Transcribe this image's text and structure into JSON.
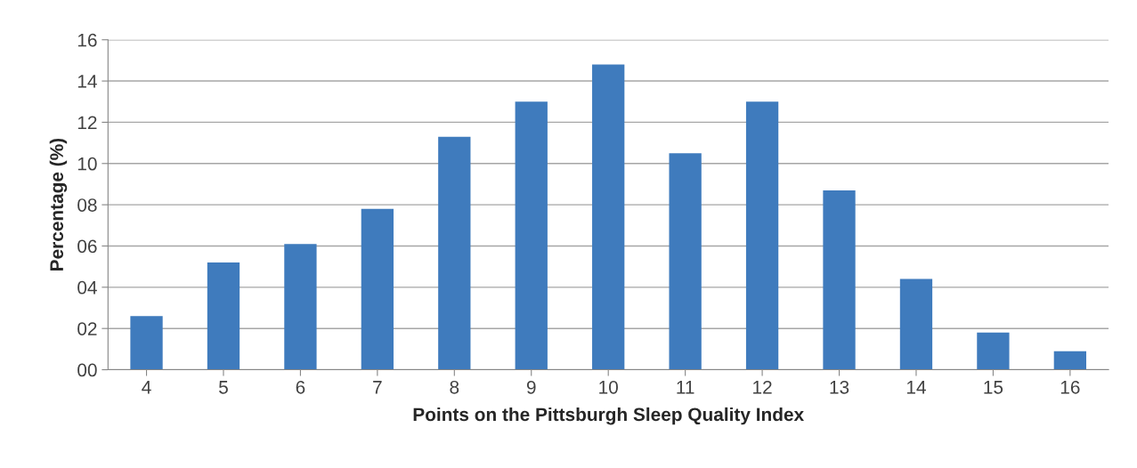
{
  "chart_data": {
    "type": "bar",
    "xlabel": "Points on the Pittsburgh Sleep Quality Index",
    "ylabel": "Percentage (%)",
    "categories": [
      "4",
      "5",
      "6",
      "7",
      "8",
      "9",
      "10",
      "11",
      "12",
      "13",
      "14",
      "15",
      "16"
    ],
    "values": [
      2.6,
      5.2,
      6.1,
      7.8,
      11.3,
      13.0,
      14.8,
      10.5,
      13.0,
      8.7,
      4.4,
      1.8,
      0.9
    ],
    "color": "#3f7bbd",
    "ylim": [
      0,
      16
    ],
    "yticks": [
      {
        "value": 0,
        "label": "00"
      },
      {
        "value": 2,
        "label": "02"
      },
      {
        "value": 4,
        "label": "04"
      },
      {
        "value": 6,
        "label": "06"
      },
      {
        "value": 8,
        "label": "08"
      },
      10,
      12,
      14,
      16
    ],
    "grid": "y"
  }
}
